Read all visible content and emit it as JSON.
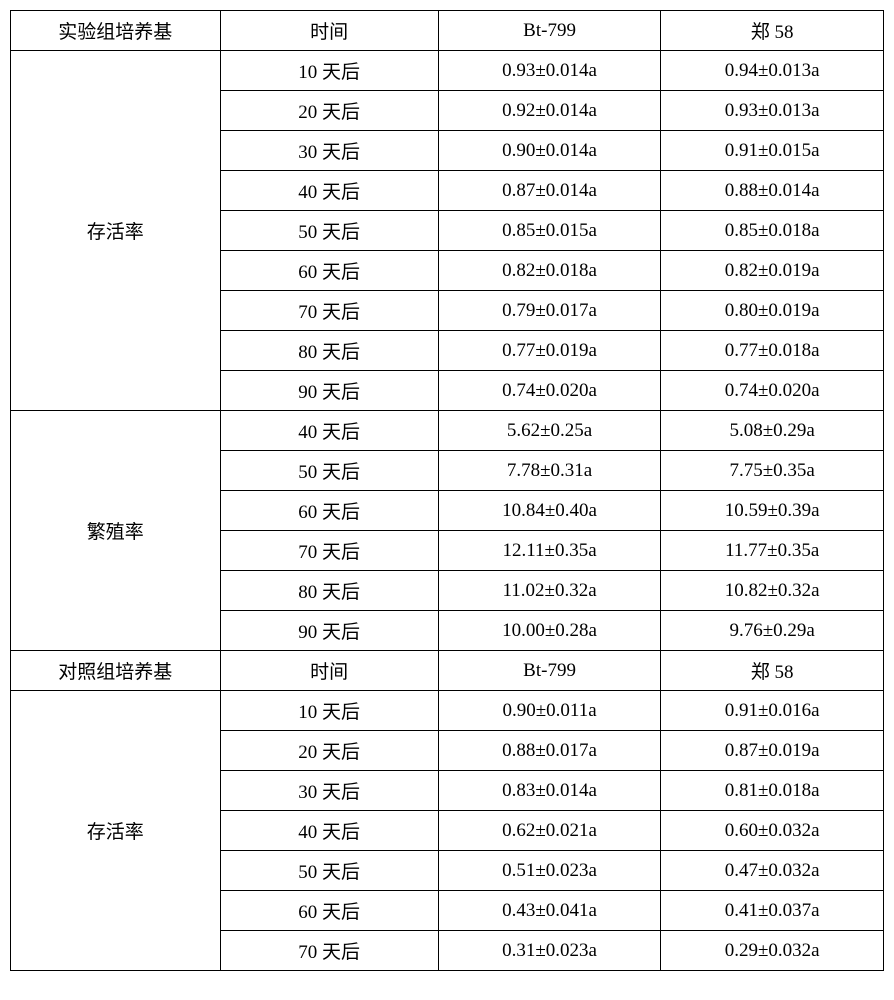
{
  "headers1": [
    "实验组培养基",
    "时间",
    "Bt-799",
    "郑 58"
  ],
  "headers2": [
    "对照组培养基",
    "时间",
    "Bt-799",
    "郑 58"
  ],
  "section1": {
    "label": "存活率",
    "rows": [
      [
        "10 天后",
        "0.93±0.014a",
        "0.94±0.013a"
      ],
      [
        "20 天后",
        "0.92±0.014a",
        "0.93±0.013a"
      ],
      [
        "30 天后",
        "0.90±0.014a",
        "0.91±0.015a"
      ],
      [
        "40 天后",
        "0.87±0.014a",
        "0.88±0.014a"
      ],
      [
        "50 天后",
        "0.85±0.015a",
        "0.85±0.018a"
      ],
      [
        "60 天后",
        "0.82±0.018a",
        "0.82±0.019a"
      ],
      [
        "70 天后",
        "0.79±0.017a",
        "0.80±0.019a"
      ],
      [
        "80 天后",
        "0.77±0.019a",
        "0.77±0.018a"
      ],
      [
        "90 天后",
        "0.74±0.020a",
        "0.74±0.020a"
      ]
    ]
  },
  "section2": {
    "label": "繁殖率",
    "rows": [
      [
        "40 天后",
        "5.62±0.25a",
        "5.08±0.29a"
      ],
      [
        "50 天后",
        "7.78±0.31a",
        "7.75±0.35a"
      ],
      [
        "60 天后",
        "10.84±0.40a",
        "10.59±0.39a"
      ],
      [
        "70 天后",
        "12.11±0.35a",
        "11.77±0.35a"
      ],
      [
        "80 天后",
        "11.02±0.32a",
        "10.82±0.32a"
      ],
      [
        "90 天后",
        "10.00±0.28a",
        "9.76±0.29a"
      ]
    ]
  },
  "section3": {
    "label": "存活率",
    "rows": [
      [
        "10 天后",
        "0.90±0.011a",
        "0.91±0.016a"
      ],
      [
        "20 天后",
        "0.88±0.017a",
        "0.87±0.019a"
      ],
      [
        "30 天后",
        "0.83±0.014a",
        "0.81±0.018a"
      ],
      [
        "40 天后",
        "0.62±0.021a",
        "0.60±0.032a"
      ],
      [
        "50 天后",
        "0.51±0.023a",
        "0.47±0.032a"
      ],
      [
        "60 天后",
        "0.43±0.041a",
        "0.41±0.037a"
      ],
      [
        "70 天后",
        "0.31±0.023a",
        "0.29±0.032a"
      ]
    ]
  }
}
